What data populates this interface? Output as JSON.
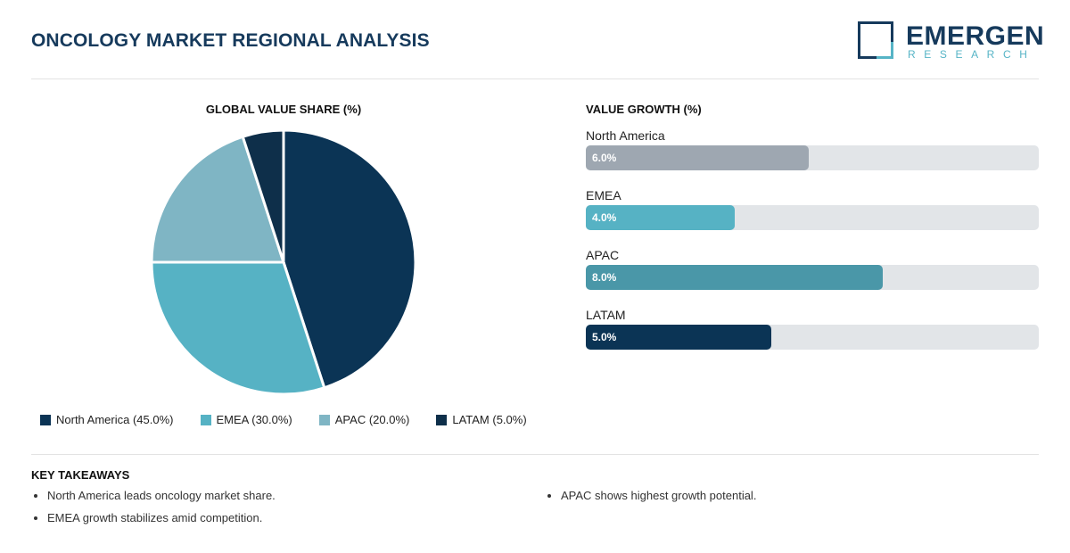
{
  "header": {
    "title": "ONCOLOGY MARKET REGIONAL ANALYSIS",
    "logo_word": "EMERGEN",
    "logo_sub": "RESEARCH"
  },
  "colors": {
    "North America": "#0b3455",
    "EMEA": "#56b2c4",
    "APAC": "#7fb5c4",
    "LATAM": "#0e2f4a",
    "bar_north_america": "#9ea7b1",
    "bar_emea": "#56b2c4",
    "bar_apac": "#4a97a8",
    "bar_latam": "#0b3455"
  },
  "chart_data": [
    {
      "type": "pie",
      "title": "GLOBAL VALUE SHARE (%)",
      "categories": [
        "North America",
        "EMEA",
        "APAC",
        "LATAM"
      ],
      "values": [
        45.0,
        30.0,
        20.0,
        5.0
      ],
      "legend": [
        "North America (45.0%)",
        "EMEA (30.0%)",
        "APAC (20.0%)",
        "LATAM (5.0%)"
      ],
      "legend_position": "bottom"
    },
    {
      "type": "bar",
      "orientation": "horizontal",
      "title": "VALUE GROWTH (%)",
      "categories": [
        "North America",
        "EMEA",
        "APAC",
        "LATAM"
      ],
      "values": [
        6.0,
        4.0,
        8.0,
        5.0
      ],
      "value_labels": [
        "6.0%",
        "4.0%",
        "8.0%",
        "5.0%"
      ],
      "xlim": [
        0,
        12.2
      ]
    }
  ],
  "takeaways": {
    "title": "KEY TAKEAWAYS",
    "col1": [
      "North America leads oncology market share.",
      "EMEA growth stabilizes amid competition."
    ],
    "col2": [
      "APAC shows highest growth potential."
    ]
  }
}
